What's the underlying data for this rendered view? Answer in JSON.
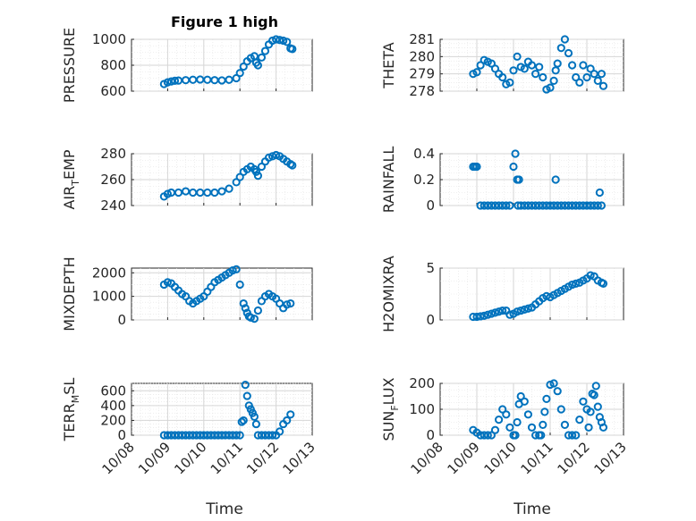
{
  "figure": {
    "title": "Figure 1 high",
    "xlabel": "Time",
    "xticks": [
      "10/08",
      "10/09",
      "10/10",
      "10/11",
      "10/12",
      "10/13"
    ],
    "xlim": [
      0,
      5
    ]
  },
  "chart_data": [
    {
      "type": "scatter",
      "title": "Figure 1 high",
      "ylabel": "PRESSURE",
      "ylabel_parts": [
        "PRESSURE"
      ],
      "yticks": [
        "600",
        "800",
        "1000"
      ],
      "ylim": [
        600,
        1000
      ],
      "yticks_values": [
        600,
        800,
        1000
      ],
      "ykey": "pressure",
      "grid": true,
      "x": [
        0.9,
        1.0,
        1.1,
        1.2,
        1.3,
        1.5,
        1.7,
        1.9,
        2.1,
        2.3,
        2.5,
        2.7,
        2.9,
        3.0,
        3.1,
        3.2,
        3.3,
        3.4,
        3.45,
        3.5,
        3.6,
        3.7,
        3.8,
        3.9,
        4.0,
        4.1,
        4.2,
        4.3,
        4.4,
        4.45
      ],
      "y": [
        655,
        668,
        675,
        680,
        682,
        685,
        688,
        690,
        688,
        685,
        683,
        688,
        700,
        740,
        790,
        830,
        855,
        870,
        820,
        800,
        860,
        910,
        960,
        990,
        1000,
        995,
        990,
        980,
        930,
        925
      ]
    },
    {
      "type": "scatter",
      "ylabel": "THETA",
      "ylabel_parts": [
        "THETA"
      ],
      "yticks": [
        "278",
        "279",
        "280",
        "281"
      ],
      "ylim": [
        278,
        281
      ],
      "yticks_values": [
        278,
        279,
        280,
        281
      ],
      "ykey": "theta",
      "grid": true,
      "x": [
        0.9,
        1.0,
        1.1,
        1.2,
        1.3,
        1.4,
        1.5,
        1.6,
        1.7,
        1.8,
        1.9,
        2.0,
        2.1,
        2.2,
        2.3,
        2.4,
        2.5,
        2.6,
        2.7,
        2.8,
        2.9,
        3.0,
        3.1,
        3.15,
        3.2,
        3.3,
        3.4,
        3.5,
        3.6,
        3.7,
        3.8,
        3.9,
        4.0,
        4.1,
        4.2,
        4.3,
        4.4,
        4.45
      ],
      "y": [
        279.0,
        279.1,
        279.5,
        279.8,
        279.7,
        279.6,
        279.3,
        279.0,
        278.8,
        278.4,
        278.5,
        279.2,
        280.0,
        279.4,
        279.3,
        279.7,
        279.5,
        279.0,
        279.4,
        278.8,
        278.1,
        278.2,
        278.6,
        279.2,
        279.6,
        280.5,
        281.0,
        280.2,
        279.5,
        278.8,
        278.5,
        279.5,
        278.8,
        279.3,
        279.0,
        278.6,
        279.0,
        278.3
      ]
    },
    {
      "type": "scatter",
      "ylabel": "AIR_TEMP",
      "ylabel_parts": [
        "AIR",
        "T",
        "EMP"
      ],
      "yticks": [
        "240",
        "260",
        "280"
      ],
      "ylim": [
        240,
        280
      ],
      "yticks_values": [
        240,
        260,
        280
      ],
      "ykey": "air_temp",
      "grid": true,
      "x": [
        0.9,
        1.0,
        1.1,
        1.3,
        1.5,
        1.7,
        1.9,
        2.1,
        2.3,
        2.5,
        2.7,
        2.9,
        3.0,
        3.1,
        3.2,
        3.3,
        3.4,
        3.45,
        3.5,
        3.6,
        3.7,
        3.8,
        3.9,
        4.0,
        4.1,
        4.2,
        4.3,
        4.4,
        4.45
      ],
      "y": [
        247,
        249,
        250,
        250,
        251,
        250,
        250,
        250,
        250,
        251,
        253,
        258,
        262,
        266,
        268,
        270,
        268,
        266,
        263,
        270,
        274,
        277,
        278,
        279,
        278,
        276,
        274,
        272,
        271
      ]
    },
    {
      "type": "scatter",
      "ylabel": "RAINFALL",
      "ylabel_parts": [
        "RAINFALL"
      ],
      "yticks": [
        "0",
        "0.2",
        "0.4"
      ],
      "ylim": [
        0,
        0.4
      ],
      "yticks_values": [
        0,
        0.2,
        0.4
      ],
      "ykey": "rainfall",
      "grid": true,
      "x": [
        0.9,
        0.95,
        1.0,
        1.1,
        1.2,
        1.3,
        1.4,
        1.5,
        1.6,
        1.7,
        1.8,
        1.9,
        2.0,
        2.05,
        2.1,
        2.12,
        2.15,
        2.2,
        2.3,
        2.4,
        2.5,
        2.6,
        2.7,
        2.8,
        2.9,
        3.0,
        3.1,
        3.15,
        3.2,
        3.3,
        3.4,
        3.5,
        3.6,
        3.7,
        3.8,
        3.9,
        4.0,
        4.1,
        4.2,
        4.3,
        4.35,
        4.4
      ],
      "y": [
        0.3,
        0.3,
        0.3,
        0,
        0,
        0,
        0,
        0,
        0,
        0,
        0,
        0,
        0.3,
        0.4,
        0.2,
        0,
        0.2,
        0,
        0,
        0,
        0,
        0,
        0,
        0,
        0,
        0,
        0,
        0.2,
        0,
        0,
        0,
        0,
        0,
        0,
        0,
        0,
        0,
        0,
        0,
        0,
        0.1,
        0
      ]
    },
    {
      "type": "scatter",
      "ylabel": "MIXDEPTH",
      "ylabel_parts": [
        "MIXDEPTH"
      ],
      "yticks": [
        "0",
        "1000",
        "2000"
      ],
      "ylim": [
        0,
        2200
      ],
      "yticks_values": [
        0,
        1000,
        2000
      ],
      "ykey": "mixdepth",
      "grid": true,
      "x": [
        0.9,
        1.0,
        1.1,
        1.2,
        1.3,
        1.4,
        1.5,
        1.6,
        1.7,
        1.8,
        1.9,
        2.0,
        2.1,
        2.2,
        2.3,
        2.4,
        2.5,
        2.6,
        2.7,
        2.8,
        2.9,
        3.0,
        3.1,
        3.15,
        3.2,
        3.25,
        3.3,
        3.4,
        3.5,
        3.6,
        3.7,
        3.8,
        3.9,
        4.0,
        4.1,
        4.2,
        4.3,
        4.4
      ],
      "y": [
        1500,
        1600,
        1550,
        1400,
        1250,
        1100,
        1000,
        800,
        700,
        800,
        900,
        1000,
        1200,
        1400,
        1600,
        1700,
        1800,
        1900,
        2000,
        2100,
        2150,
        1500,
        700,
        500,
        300,
        150,
        100,
        50,
        400,
        800,
        1000,
        1100,
        1000,
        900,
        700,
        500,
        650,
        700
      ]
    },
    {
      "type": "scatter",
      "ylabel": "H2OMIXRA",
      "ylabel_parts": [
        "H2OMIXRA"
      ],
      "yticks": [
        "0",
        "5"
      ],
      "ylim": [
        0,
        5
      ],
      "yticks_values": [
        0,
        5
      ],
      "ykey": "h2omixra",
      "grid": true,
      "x": [
        0.9,
        1.0,
        1.1,
        1.2,
        1.3,
        1.4,
        1.5,
        1.6,
        1.7,
        1.8,
        1.9,
        2.0,
        2.1,
        2.2,
        2.3,
        2.4,
        2.5,
        2.6,
        2.7,
        2.8,
        2.9,
        3.0,
        3.1,
        3.2,
        3.3,
        3.4,
        3.5,
        3.6,
        3.7,
        3.8,
        3.9,
        4.0,
        4.1,
        4.2,
        4.3,
        4.4,
        4.45
      ],
      "y": [
        0.3,
        0.3,
        0.35,
        0.4,
        0.5,
        0.6,
        0.7,
        0.8,
        0.9,
        0.9,
        0.5,
        0.6,
        0.8,
        0.9,
        1.0,
        1.1,
        1.2,
        1.5,
        1.8,
        2.1,
        2.3,
        2.2,
        2.4,
        2.6,
        2.8,
        3.0,
        3.2,
        3.4,
        3.5,
        3.6,
        3.8,
        4.0,
        4.3,
        4.2,
        3.8,
        3.6,
        3.5
      ]
    },
    {
      "type": "scatter",
      "ylabel": "TERR_MSL",
      "ylabel_parts": [
        "TERR",
        "M",
        "SL"
      ],
      "yticks": [
        "0",
        "200",
        "400",
        "600"
      ],
      "ylim": [
        0,
        700
      ],
      "yticks_values": [
        0,
        200,
        400,
        600
      ],
      "ykey": "terr_msl",
      "grid": true,
      "x": [
        0.9,
        1.0,
        1.1,
        1.2,
        1.3,
        1.4,
        1.5,
        1.6,
        1.7,
        1.8,
        1.9,
        2.0,
        2.1,
        2.2,
        2.3,
        2.4,
        2.5,
        2.6,
        2.7,
        2.8,
        2.9,
        3.0,
        3.05,
        3.1,
        3.15,
        3.2,
        3.25,
        3.3,
        3.35,
        3.4,
        3.45,
        3.5,
        3.6,
        3.7,
        3.8,
        3.9,
        4.0,
        4.1,
        4.2,
        4.3,
        4.4
      ],
      "y": [
        0,
        0,
        0,
        0,
        0,
        0,
        0,
        0,
        0,
        0,
        0,
        0,
        0,
        0,
        0,
        0,
        0,
        0,
        0,
        0,
        0,
        0,
        180,
        200,
        680,
        530,
        400,
        350,
        300,
        250,
        150,
        0,
        0,
        0,
        0,
        0,
        0,
        50,
        150,
        200,
        280
      ]
    },
    {
      "type": "scatter",
      "ylabel": "SUN_FLUX",
      "ylabel_parts": [
        "SUN",
        "F",
        "LUX"
      ],
      "yticks": [
        "0",
        "100",
        "200"
      ],
      "ylim": [
        0,
        200
      ],
      "yticks_values": [
        0,
        100,
        200
      ],
      "ykey": "sun_flux",
      "grid": true,
      "x": [
        0.9,
        1.0,
        1.1,
        1.2,
        1.3,
        1.4,
        1.5,
        1.6,
        1.7,
        1.8,
        1.9,
        2.0,
        2.05,
        2.1,
        2.15,
        2.2,
        2.3,
        2.4,
        2.5,
        2.6,
        2.7,
        2.75,
        2.8,
        2.85,
        2.9,
        3.0,
        3.1,
        3.2,
        3.3,
        3.4,
        3.5,
        3.6,
        3.7,
        3.8,
        3.9,
        4.0,
        4.05,
        4.1,
        4.15,
        4.2,
        4.25,
        4.3,
        4.35,
        4.4,
        4.45
      ],
      "y": [
        20,
        10,
        0,
        0,
        0,
        0,
        20,
        60,
        100,
        80,
        30,
        0,
        0,
        50,
        120,
        150,
        130,
        80,
        30,
        0,
        0,
        0,
        40,
        90,
        140,
        195,
        200,
        170,
        100,
        40,
        0,
        0,
        0,
        60,
        130,
        100,
        30,
        90,
        160,
        155,
        190,
        110,
        70,
        50,
        30
      ]
    }
  ]
}
